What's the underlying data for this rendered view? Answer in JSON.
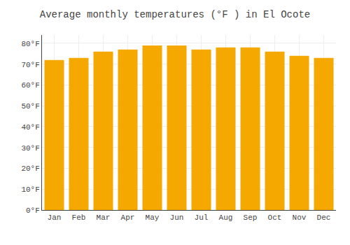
{
  "chart_data": {
    "type": "bar",
    "title": "Average monthly temperatures (°F ) in El Ocote",
    "categories": [
      "Jan",
      "Feb",
      "Mar",
      "Apr",
      "May",
      "Jun",
      "Jul",
      "Aug",
      "Sep",
      "Oct",
      "Nov",
      "Dec"
    ],
    "values": [
      72,
      73,
      76,
      77,
      79,
      79,
      77,
      78,
      78,
      76,
      74,
      73
    ],
    "color": "#F5A800",
    "ylim": [
      0,
      84
    ],
    "yticks": [
      {
        "value": 0,
        "label": "0°F"
      },
      {
        "value": 10,
        "label": "10°F"
      },
      {
        "value": 20,
        "label": "20°F"
      },
      {
        "value": 30,
        "label": "30°F"
      },
      {
        "value": 40,
        "label": "40°F"
      },
      {
        "value": 50,
        "label": "50°F"
      },
      {
        "value": 60,
        "label": "60°F"
      },
      {
        "value": 70,
        "label": "70°F"
      },
      {
        "value": 80,
        "label": "80°F"
      }
    ],
    "grid": true
  }
}
